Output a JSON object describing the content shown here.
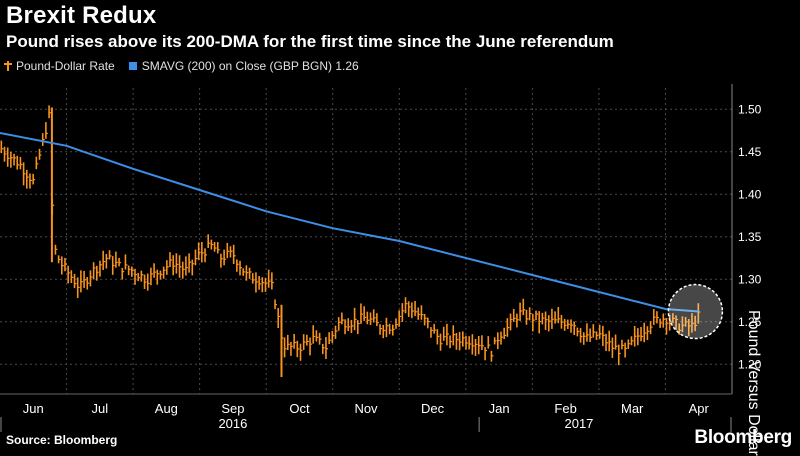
{
  "title": "Brexit Redux",
  "subtitle": "Pound rises above its 200-DMA for the first time since the June referendum",
  "legend": [
    {
      "label": "Pound-Dollar Rate",
      "color": "#f7931e",
      "kind": "ohlc"
    },
    {
      "label": "SMAVG (200) on Close (GBP BGN) 1.26",
      "color": "#3d8ee6",
      "kind": "line"
    }
  ],
  "source": "Source: Bloomberg",
  "brand": "Bloomberg",
  "chart_data": {
    "type": "line",
    "ylabel": "Pound Versus Dollar",
    "ylim": [
      1.165,
      1.525
    ],
    "yticks": [
      1.2,
      1.25,
      1.3,
      1.35,
      1.4,
      1.45,
      1.5
    ],
    "ytick_labels": [
      "1.20",
      "1.25",
      "1.30",
      "1.35",
      "1.40",
      "1.45",
      "1.50"
    ],
    "month_labels": [
      "Jun",
      "Jul",
      "Aug",
      "Sep",
      "Oct",
      "Nov",
      "Dec",
      "Jan",
      "Feb",
      "Mar",
      "Apr"
    ],
    "month_positions": [
      0.5,
      1.5,
      2.5,
      3.5,
      4.5,
      5.5,
      6.5,
      7.5,
      8.5,
      9.5,
      10.5
    ],
    "year_labels": [
      "2016",
      "2017"
    ],
    "year_positions": [
      3.5,
      8.7
    ],
    "xlim": [
      0,
      11
    ],
    "grid": true,
    "highlight": {
      "x": 10.45,
      "y": 1.262,
      "label": "crossover"
    },
    "series": [
      {
        "name": "Pound-Dollar Rate",
        "color": "#f7931e",
        "x": [
          0.0,
          0.3,
          0.5,
          0.7,
          0.75,
          0.8,
          0.9,
          1.0,
          1.2,
          1.4,
          1.6,
          1.8,
          2.0,
          2.2,
          2.4,
          2.6,
          2.8,
          3.0,
          3.2,
          3.3,
          3.5,
          3.7,
          3.9,
          4.1,
          4.2,
          4.25,
          4.3,
          4.5,
          4.7,
          4.9,
          5.1,
          5.3,
          5.5,
          5.7,
          5.9,
          6.1,
          6.2,
          6.4,
          6.6,
          6.8,
          7.0,
          7.2,
          7.4,
          7.5,
          7.6,
          7.8,
          8.0,
          8.2,
          8.4,
          8.6,
          8.8,
          9.0,
          9.2,
          9.4,
          9.6,
          9.8,
          10.0,
          10.2,
          10.4,
          10.5
        ],
        "y": [
          1.455,
          1.435,
          1.415,
          1.48,
          1.495,
          1.34,
          1.32,
          1.31,
          1.29,
          1.31,
          1.325,
          1.315,
          1.31,
          1.3,
          1.31,
          1.32,
          1.31,
          1.33,
          1.34,
          1.325,
          1.33,
          1.305,
          1.3,
          1.29,
          1.245,
          1.225,
          1.22,
          1.22,
          1.23,
          1.22,
          1.25,
          1.25,
          1.255,
          1.245,
          1.245,
          1.27,
          1.265,
          1.25,
          1.23,
          1.23,
          1.23,
          1.225,
          1.215,
          1.235,
          1.24,
          1.26,
          1.255,
          1.25,
          1.25,
          1.25,
          1.23,
          1.235,
          1.22,
          1.215,
          1.235,
          1.25,
          1.255,
          1.245,
          1.245,
          1.257
        ]
      },
      {
        "name": "SMAVG (200) on Close (GBP BGN) 1.26",
        "color": "#3d8ee6",
        "x": [
          0.0,
          1.0,
          2.0,
          3.0,
          4.0,
          5.0,
          6.0,
          7.0,
          8.0,
          9.0,
          10.0,
          10.5
        ],
        "y": [
          1.472,
          1.457,
          1.43,
          1.405,
          1.38,
          1.36,
          1.345,
          1.325,
          1.305,
          1.285,
          1.265,
          1.262
        ]
      }
    ]
  }
}
